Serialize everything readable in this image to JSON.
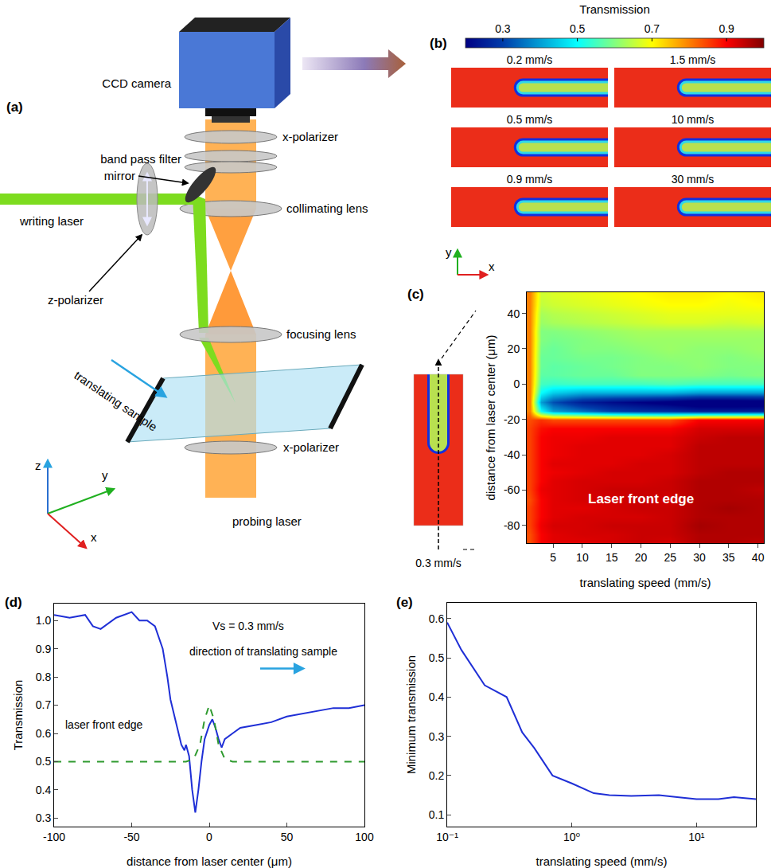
{
  "diagram": {
    "panel": "(a)",
    "labels": {
      "camera": "CCD camera",
      "polarizer_top": "x-polarizer",
      "filter": "band pass filter",
      "mirror": "mirror",
      "collimating": "collimating lens",
      "writing": "writing laser",
      "focusing": "focusing lens",
      "zpol": "z-polarizer",
      "sample": "translating sample",
      "polarizer_bottom": "x-polarizer",
      "probing": "probing laser"
    },
    "axes": [
      "z",
      "y",
      "x"
    ]
  },
  "images": {
    "panel": "(b)",
    "colorbar": {
      "title": "Transmission",
      "range": [
        0.2,
        1.0
      ],
      "ticks": [
        0.3,
        0.5,
        0.7,
        0.9
      ]
    },
    "frames": [
      "0.2 mm/s",
      "1.5 mm/s",
      "0.5 mm/s",
      "10 mm/s",
      "0.9 mm/s",
      "30 mm/s"
    ],
    "axes": [
      "y",
      "x"
    ]
  },
  "chart_data": [
    {
      "panel": "(c)",
      "type": "heatmap",
      "xlabel": "translating speed (mm/s)",
      "ylabel": "distance from laser center (μm)",
      "x": [
        1,
        3,
        5,
        10,
        15,
        20,
        25,
        30,
        35,
        40
      ],
      "y": [
        -90,
        -85,
        -80,
        -75,
        -70,
        -65,
        -60,
        -55,
        -50,
        -45,
        -40,
        -35,
        -30,
        -25,
        -20,
        -15,
        -10,
        -5,
        0,
        5,
        10,
        15,
        20,
        25,
        30,
        35,
        40,
        45,
        50
      ],
      "z": [
        [
          0.84,
          0.9,
          0.92,
          0.92,
          0.93,
          0.94,
          0.93,
          0.96,
          0.96,
          0.95
        ],
        [
          0.84,
          0.9,
          0.92,
          0.93,
          0.93,
          0.94,
          0.94,
          0.96,
          0.96,
          0.96
        ],
        [
          0.85,
          0.91,
          0.93,
          0.93,
          0.94,
          0.94,
          0.94,
          0.97,
          0.96,
          0.96
        ],
        [
          0.85,
          0.9,
          0.92,
          0.93,
          0.93,
          0.93,
          0.94,
          0.96,
          0.96,
          0.96
        ],
        [
          0.85,
          0.9,
          0.92,
          0.92,
          0.93,
          0.94,
          0.94,
          0.96,
          0.97,
          0.96
        ],
        [
          0.84,
          0.9,
          0.92,
          0.93,
          0.93,
          0.94,
          0.93,
          0.96,
          0.96,
          0.96
        ],
        [
          0.85,
          0.91,
          0.92,
          0.93,
          0.94,
          0.94,
          0.94,
          0.96,
          0.96,
          0.95
        ],
        [
          0.85,
          0.9,
          0.92,
          0.93,
          0.93,
          0.93,
          0.94,
          0.96,
          0.96,
          0.96
        ],
        [
          0.85,
          0.9,
          0.91,
          0.92,
          0.93,
          0.93,
          0.93,
          0.95,
          0.96,
          0.96
        ],
        [
          0.85,
          0.9,
          0.92,
          0.92,
          0.92,
          0.93,
          0.93,
          0.95,
          0.95,
          0.95
        ],
        [
          0.85,
          0.9,
          0.91,
          0.92,
          0.92,
          0.92,
          0.93,
          0.95,
          0.95,
          0.95
        ],
        [
          0.85,
          0.9,
          0.91,
          0.92,
          0.92,
          0.92,
          0.92,
          0.95,
          0.95,
          0.95
        ],
        [
          0.85,
          0.9,
          0.91,
          0.91,
          0.92,
          0.92,
          0.92,
          0.94,
          0.95,
          0.95
        ],
        [
          0.85,
          0.89,
          0.9,
          0.9,
          0.9,
          0.9,
          0.9,
          0.93,
          0.93,
          0.93
        ],
        [
          0.84,
          0.86,
          0.84,
          0.84,
          0.84,
          0.84,
          0.84,
          0.9,
          0.9,
          0.9
        ],
        [
          0.8,
          0.5,
          0.4,
          0.35,
          0.3,
          0.28,
          0.27,
          0.25,
          0.25,
          0.25
        ],
        [
          0.8,
          0.4,
          0.32,
          0.25,
          0.22,
          0.2,
          0.18,
          0.15,
          0.15,
          0.16
        ],
        [
          0.8,
          0.5,
          0.45,
          0.42,
          0.42,
          0.42,
          0.42,
          0.4,
          0.4,
          0.4
        ],
        [
          0.8,
          0.55,
          0.54,
          0.55,
          0.55,
          0.55,
          0.56,
          0.55,
          0.55,
          0.55
        ],
        [
          0.8,
          0.57,
          0.57,
          0.58,
          0.58,
          0.6,
          0.6,
          0.6,
          0.59,
          0.6
        ],
        [
          0.8,
          0.58,
          0.57,
          0.58,
          0.59,
          0.6,
          0.6,
          0.61,
          0.6,
          0.6
        ],
        [
          0.8,
          0.58,
          0.58,
          0.59,
          0.59,
          0.6,
          0.61,
          0.61,
          0.6,
          0.61
        ],
        [
          0.8,
          0.59,
          0.58,
          0.6,
          0.6,
          0.61,
          0.62,
          0.61,
          0.61,
          0.62
        ],
        [
          0.8,
          0.6,
          0.59,
          0.6,
          0.61,
          0.62,
          0.62,
          0.62,
          0.62,
          0.62
        ],
        [
          0.8,
          0.6,
          0.6,
          0.61,
          0.62,
          0.63,
          0.63,
          0.63,
          0.63,
          0.63
        ],
        [
          0.8,
          0.62,
          0.63,
          0.64,
          0.65,
          0.66,
          0.67,
          0.67,
          0.66,
          0.67
        ],
        [
          0.8,
          0.63,
          0.64,
          0.65,
          0.66,
          0.67,
          0.68,
          0.68,
          0.68,
          0.68
        ],
        [
          0.8,
          0.65,
          0.66,
          0.67,
          0.68,
          0.69,
          0.7,
          0.7,
          0.69,
          0.7
        ],
        [
          0.8,
          0.66,
          0.67,
          0.68,
          0.69,
          0.7,
          0.71,
          0.71,
          0.7,
          0.71
        ]
      ],
      "xlim": [
        0.5,
        41
      ],
      "ylim": [
        -90,
        52
      ],
      "xticks": [
        5,
        10,
        15,
        20,
        25,
        30,
        35,
        40
      ],
      "yticks": [
        -80,
        -60,
        -40,
        -20,
        0,
        20,
        40
      ],
      "annotations": [
        {
          "text": "Laser front edge",
          "x": 20,
          "y": -65
        }
      ],
      "inset_label": "0.3 mm/s",
      "grid": false
    },
    {
      "panel": "(d)",
      "type": "line",
      "xlabel": "distance from laser center (μm)",
      "ylabel": "Transmission",
      "xlim": [
        -100,
        100
      ],
      "ylim": [
        0.27,
        1.06
      ],
      "xticks": [
        -100,
        -50,
        0,
        50,
        100
      ],
      "yticks": [
        0.3,
        0.4,
        0.5,
        0.6,
        0.7,
        0.8,
        0.9,
        {
          "value": 1,
          "label": "1.0"
        }
      ],
      "series": [
        {
          "color": "#1f2fd6",
          "line_style": "solid",
          "x": [
            -100,
            -90,
            -80,
            -75,
            -70,
            -60,
            -50,
            -45,
            -40,
            -35,
            -30,
            -27,
            -25,
            -22,
            -20,
            -18,
            -16,
            -15,
            -13,
            -11,
            -9,
            -7,
            -5,
            -3,
            0,
            2,
            4,
            6,
            8,
            10,
            15,
            20,
            30,
            40,
            50,
            60,
            70,
            80,
            90,
            100
          ],
          "values": [
            1.02,
            1.01,
            1.02,
            0.98,
            0.97,
            1.01,
            1.03,
            1.0,
            1.0,
            0.98,
            0.9,
            0.8,
            0.72,
            0.65,
            0.6,
            0.56,
            0.54,
            0.56,
            0.52,
            0.4,
            0.32,
            0.4,
            0.5,
            0.58,
            0.63,
            0.65,
            0.62,
            0.58,
            0.55,
            0.58,
            0.6,
            0.62,
            0.63,
            0.64,
            0.66,
            0.67,
            0.68,
            0.69,
            0.69,
            0.7
          ]
        },
        {
          "color": "#2e9a2e",
          "line_style": "dash",
          "x": [
            -100,
            -15,
            -10,
            -6,
            -3,
            0,
            3,
            6,
            10,
            15,
            100
          ],
          "values": [
            0.5,
            0.5,
            0.51,
            0.56,
            0.65,
            0.7,
            0.65,
            0.56,
            0.51,
            0.5,
            0.5
          ]
        }
      ],
      "annotations": [
        {
          "text": "Vs = 0.3 mm/s",
          "x": 25,
          "y": 0.98
        },
        {
          "text": "direction of translating sample",
          "x": 35,
          "y": 0.89
        },
        {
          "text": "laser front edge",
          "x": -68,
          "y": 0.63
        }
      ],
      "grid": false
    },
    {
      "panel": "(e)",
      "type": "line",
      "log": "x",
      "xlabel": "translating speed (mm/s)",
      "ylabel": "Minimum transmission",
      "xlim": [
        0.1,
        30
      ],
      "ylim": [
        0.07,
        0.64
      ],
      "xticks": [
        {
          "value": 0.1,
          "label": "10⁻¹"
        },
        {
          "value": 1,
          "label": "10⁰"
        },
        {
          "value": 10,
          "label": "10¹"
        }
      ],
      "yticks": [
        0.1,
        0.2,
        0.3,
        0.4,
        0.5,
        0.6
      ],
      "series": [
        {
          "color": "#1f2fd6",
          "line_style": "solid",
          "x": [
            0.1,
            0.13,
            0.2,
            0.3,
            0.4,
            0.5,
            0.7,
            1.0,
            1.5,
            2,
            3,
            5,
            7,
            10,
            15,
            20,
            30
          ],
          "values": [
            0.59,
            0.52,
            0.43,
            0.4,
            0.31,
            0.27,
            0.2,
            0.18,
            0.155,
            0.15,
            0.148,
            0.15,
            0.145,
            0.14,
            0.14,
            0.145,
            0.14
          ]
        }
      ],
      "grid": false
    }
  ]
}
